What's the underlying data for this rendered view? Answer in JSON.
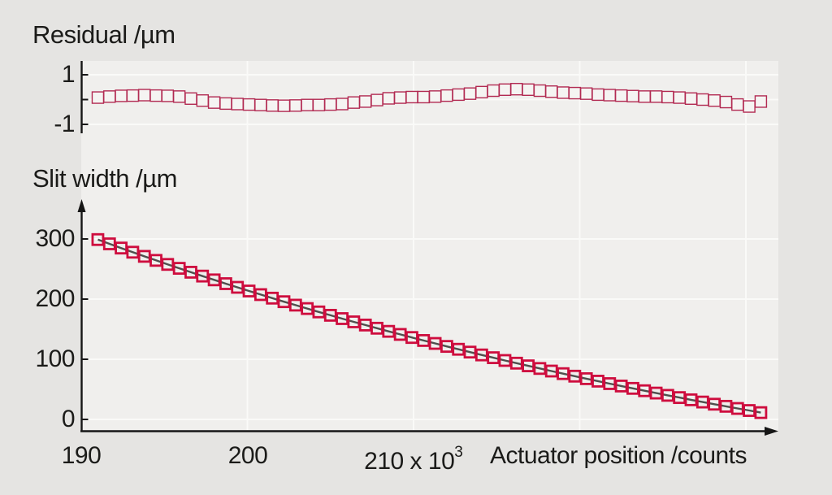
{
  "colors": {
    "page_bg": "#e5e4e2",
    "plot_bg": "#f0efed",
    "grid": "#fafaf8",
    "axis": "#161616",
    "text": "#1b1b19",
    "residual_marker_stroke": "#b22a52",
    "residual_marker_fill": "#f5f4f2",
    "slit_marker_stroke": "#ce0d3e",
    "fit_line": "#4f4f4d"
  },
  "top_panel": {
    "title": "Residual /µm",
    "y_ticks": [
      {
        "value": 1,
        "label": "1"
      },
      {
        "value": 0,
        "label": ""
      },
      {
        "value": -1,
        "label": "-1"
      }
    ],
    "grid_y_values": [
      1,
      0,
      -1
    ]
  },
  "bottom_panel": {
    "title": "Slit width /µm",
    "y_ticks": [
      {
        "value": 300,
        "label": "300"
      },
      {
        "value": 200,
        "label": "200"
      },
      {
        "value": 100,
        "label": "100"
      },
      {
        "value": 0,
        "label": "0"
      }
    ],
    "grid_y_values": [
      300,
      200,
      100,
      0
    ]
  },
  "x_axis": {
    "label": "Actuator position /counts",
    "ticks": [
      {
        "value": 190,
        "label": "190",
        "exponent": null
      },
      {
        "value": 200,
        "label": "200",
        "exponent": null
      },
      {
        "value": 210,
        "label": "210 x 10",
        "exponent": "3"
      }
    ],
    "grid_x_values": [
      200,
      210,
      220,
      230
    ]
  },
  "chart_data": [
    {
      "type": "scatter",
      "name": "residual",
      "title": "Residual /µm",
      "xlabel": "Actuator position /counts",
      "ylabel": "Residual /µm",
      "x_scale_note": "x values in counts x 10^3",
      "marker": "open-square",
      "ylim": [
        -1.5,
        1.5
      ],
      "y_tick_values": [
        1,
        -1
      ],
      "grid": true,
      "legend": "none",
      "x": [
        191.0,
        191.7,
        192.4,
        193.1,
        193.8,
        194.5,
        195.2,
        195.9,
        196.6,
        197.3,
        198.0,
        198.7,
        199.4,
        200.1,
        200.8,
        201.5,
        202.2,
        202.9,
        203.6,
        204.3,
        205.0,
        205.7,
        206.4,
        207.1,
        207.8,
        208.5,
        209.2,
        209.9,
        210.6,
        211.3,
        212.0,
        212.7,
        213.4,
        214.1,
        214.8,
        215.5,
        216.2,
        216.9,
        217.6,
        218.3,
        219.0,
        219.7,
        220.4,
        221.1,
        221.8,
        222.5,
        223.2,
        223.9,
        224.6,
        225.3,
        226.0,
        226.7,
        227.4,
        228.1,
        228.8,
        229.5,
        230.2,
        230.9
      ],
      "y": [
        0.08,
        0.12,
        0.15,
        0.16,
        0.18,
        0.16,
        0.15,
        0.12,
        0.04,
        -0.04,
        -0.12,
        -0.16,
        -0.18,
        -0.2,
        -0.22,
        -0.24,
        -0.25,
        -0.24,
        -0.22,
        -0.22,
        -0.2,
        -0.18,
        -0.12,
        -0.08,
        -0.02,
        0.05,
        0.08,
        0.1,
        0.1,
        0.12,
        0.16,
        0.2,
        0.24,
        0.3,
        0.36,
        0.4,
        0.42,
        0.4,
        0.36,
        0.32,
        0.28,
        0.26,
        0.24,
        0.2,
        0.18,
        0.16,
        0.14,
        0.12,
        0.12,
        0.1,
        0.08,
        0.04,
        0.0,
        -0.04,
        -0.1,
        -0.2,
        -0.28,
        -0.08
      ]
    },
    {
      "type": "scatter",
      "name": "slit_width",
      "title": "Slit width /µm",
      "xlabel": "Actuator position /counts",
      "ylabel": "Slit width /µm",
      "x_scale_note": "x values in counts x 10^3",
      "marker": "open-square",
      "fit_line": true,
      "ylim": [
        0,
        300
      ],
      "y_tick_values": [
        0,
        100,
        200,
        300
      ],
      "grid": true,
      "legend": "none",
      "x": [
        191.0,
        191.7,
        192.4,
        193.1,
        193.8,
        194.5,
        195.2,
        195.9,
        196.6,
        197.3,
        198.0,
        198.7,
        199.4,
        200.1,
        200.8,
        201.5,
        202.2,
        202.9,
        203.6,
        204.3,
        205.0,
        205.7,
        206.4,
        207.1,
        207.8,
        208.5,
        209.2,
        209.9,
        210.6,
        211.3,
        212.0,
        212.7,
        213.4,
        214.1,
        214.8,
        215.5,
        216.2,
        216.9,
        217.6,
        218.3,
        219.0,
        219.7,
        220.4,
        221.1,
        221.8,
        222.5,
        223.2,
        223.9,
        224.6,
        225.3,
        226.0,
        226.7,
        227.4,
        228.1,
        228.8,
        229.5,
        230.2,
        230.9
      ],
      "y": [
        299.0,
        291.9,
        284.9,
        278.0,
        271.1,
        264.4,
        257.7,
        251.2,
        244.7,
        238.3,
        232.0,
        225.7,
        219.6,
        213.5,
        207.5,
        201.6,
        195.7,
        190.0,
        184.3,
        178.7,
        173.1,
        167.6,
        162.2,
        156.9,
        151.6,
        146.4,
        141.3,
        136.2,
        131.2,
        126.3,
        121.4,
        116.6,
        111.9,
        107.2,
        102.6,
        98.0,
        93.5,
        89.1,
        84.7,
        80.4,
        76.1,
        71.9,
        67.7,
        63.6,
        59.5,
        55.5,
        51.6,
        47.7,
        43.8,
        40.0,
        36.3,
        32.6,
        28.9,
        25.3,
        21.8,
        18.2,
        14.8,
        11.3
      ]
    }
  ]
}
